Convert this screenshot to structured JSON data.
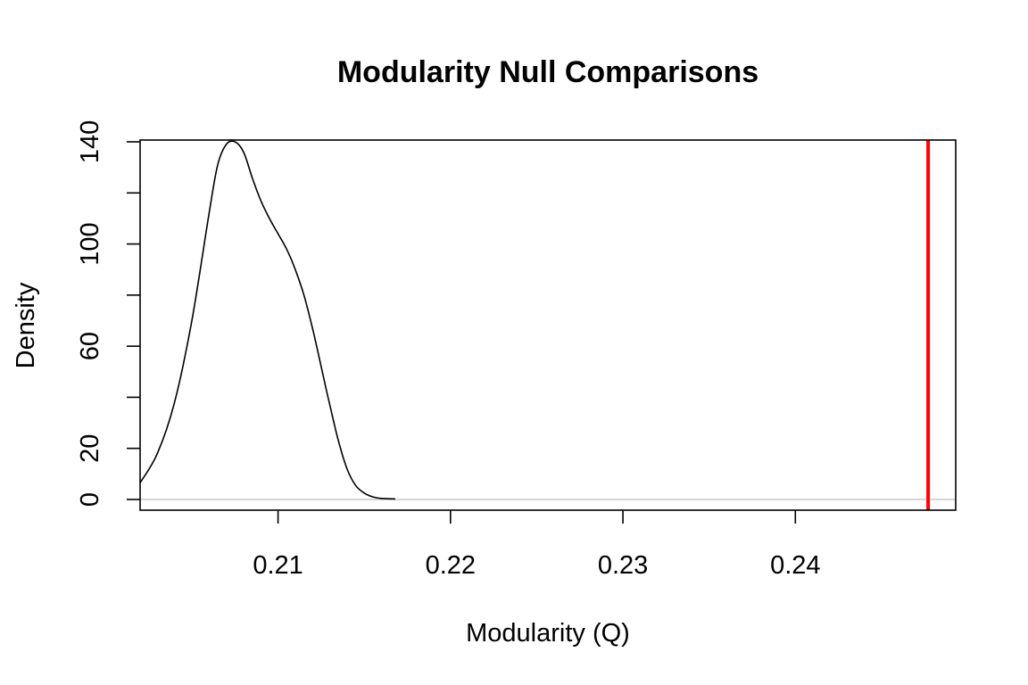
{
  "chart_data": {
    "type": "line",
    "title": "Modularity Null Comparisons",
    "xlabel": "Modularity (Q)",
    "ylabel": "Density",
    "xlim": [
      0.202,
      0.2493
    ],
    "ylim": [
      -4.2,
      140.7
    ],
    "x_ticks": [
      0.21,
      0.22,
      0.23,
      0.24
    ],
    "x_tick_labels": [
      "0.21",
      "0.22",
      "0.23",
      "0.24"
    ],
    "y_ticks": [
      0,
      20,
      40,
      60,
      80,
      100,
      120,
      140
    ],
    "y_tick_labels": [
      "0",
      "20",
      "",
      "60",
      "",
      "100",
      "",
      "140"
    ],
    "zero_line": 0,
    "observed_value": 0.2477,
    "colors": {
      "density_line": "#000000",
      "observed_line": "#ff0000",
      "zero_line": "#bebebe"
    },
    "series": [
      {
        "x": [
          0.202,
          0.203,
          0.204,
          0.205,
          0.206,
          0.2065,
          0.207,
          0.2075,
          0.208,
          0.2085,
          0.209,
          0.2095,
          0.21,
          0.2105,
          0.211,
          0.2115,
          0.212,
          0.2125,
          0.213,
          0.2135,
          0.214,
          0.2145,
          0.215,
          0.2155,
          0.216,
          0.2168
        ],
        "values": [
          6.5,
          18,
          38,
          70,
          112,
          131,
          139,
          140,
          136,
          126,
          117,
          110,
          104,
          98,
          90,
          80,
          67,
          52,
          37,
          23,
          12,
          5.5,
          2.5,
          1,
          0.4,
          0.2
        ]
      }
    ]
  }
}
